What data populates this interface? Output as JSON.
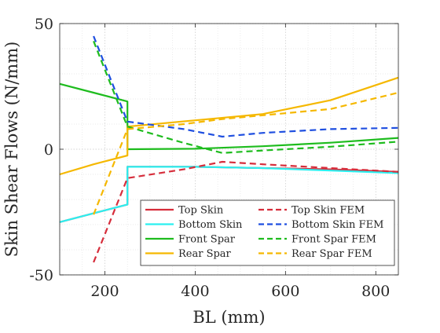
{
  "chart_data": {
    "type": "line",
    "title": "",
    "xlabel": "BL (mm)",
    "ylabel": "Skin Shear Flows (N/mm)",
    "xlim": [
      100,
      850
    ],
    "ylim": [
      -50,
      50
    ],
    "xticks": [
      200,
      400,
      600,
      800
    ],
    "yticks": [
      -50,
      0,
      50
    ],
    "x_tick_labels": [
      "200",
      "400",
      "600",
      "800"
    ],
    "y_tick_labels": [
      "-50",
      "0",
      "50"
    ],
    "grid": "on (dotted, with minor grid)",
    "box": "on",
    "legend_position": "lower-right",
    "legend_columns": 2,
    "series": [
      {
        "name": "Top Skin",
        "color": "#d62d3b",
        "style": "solid",
        "x": [
          100,
          250,
          250,
          400,
          550,
          700,
          850
        ],
        "y": [
          -29,
          -22,
          -7,
          -7,
          -7.5,
          -8,
          -9
        ]
      },
      {
        "name": "Bottom Skin",
        "color": "#2bf0f0",
        "style": "solid",
        "x": [
          100,
          250,
          250,
          400,
          550,
          700,
          850
        ],
        "y": [
          -29,
          -22,
          -7,
          -7,
          -7.5,
          -8.5,
          -9.5
        ]
      },
      {
        "name": "Front Spar",
        "color": "#1ebc1e",
        "style": "solid",
        "x": [
          100,
          175,
          250,
          250,
          400,
          550,
          700,
          850
        ],
        "y": [
          26,
          22.5,
          19,
          0,
          0.2,
          1.2,
          2.6,
          4.5
        ]
      },
      {
        "name": "Rear Spar",
        "color": "#f5b800",
        "style": "solid",
        "x": [
          100,
          175,
          250,
          250,
          400,
          550,
          700,
          850
        ],
        "y": [
          -10,
          -6,
          -2.5,
          9,
          11.5,
          14,
          19.5,
          28.5
        ]
      },
      {
        "name": "Top Skin FEM",
        "color": "#d62d3b",
        "style": "dashed",
        "x": [
          175,
          250,
          375,
          460,
          550,
          700,
          850
        ],
        "y": [
          -45,
          -11.5,
          -8,
          -5,
          -6,
          -7.5,
          -9
        ]
      },
      {
        "name": "Bottom Skin FEM",
        "color": "#1f4fe0",
        "style": "dashed",
        "x": [
          175,
          250,
          375,
          460,
          550,
          700,
          850
        ],
        "y": [
          45,
          11,
          8,
          5,
          6.5,
          8,
          8.5
        ]
      },
      {
        "name": "Front Spar FEM",
        "color": "#1ebc1e",
        "style": "dashed",
        "x": [
          175,
          250,
          375,
          460,
          550,
          700,
          850
        ],
        "y": [
          43,
          9,
          2.5,
          -1.5,
          -0.5,
          1,
          3
        ]
      },
      {
        "name": "Rear Spar FEM",
        "color": "#f5b800",
        "style": "dashed",
        "x": [
          175,
          250,
          375,
          460,
          550,
          700,
          850
        ],
        "y": [
          -26,
          8,
          10,
          12,
          13.5,
          16,
          22.5
        ]
      }
    ]
  }
}
